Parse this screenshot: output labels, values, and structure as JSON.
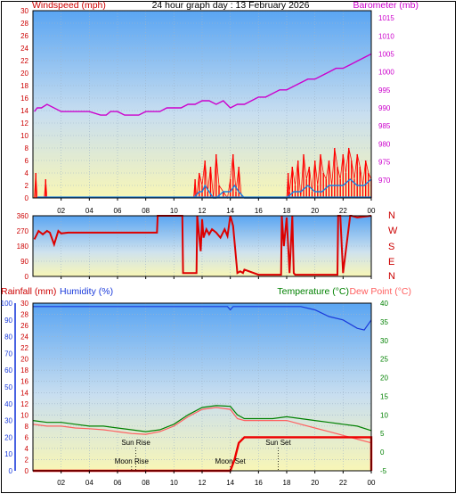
{
  "title": "24 hour graph day : 13 February 2026",
  "chart_data": [
    {
      "type": "line",
      "id": "wind-baro",
      "left_label": "Windspeed (mph)",
      "right_label": "Barometer (mb)",
      "left_ylim": [
        0,
        30
      ],
      "left_ticks": [
        0,
        2,
        4,
        6,
        8,
        10,
        12,
        14,
        16,
        18,
        20,
        22,
        24,
        26,
        28,
        30
      ],
      "right_ylim": [
        965,
        1017
      ],
      "right_ticks": [
        970,
        975,
        980,
        985,
        990,
        995,
        1000,
        1005,
        1010,
        1015
      ],
      "x_ticks": [
        "02",
        "04",
        "06",
        "08",
        "10",
        "12",
        "14",
        "16",
        "18",
        "20",
        "22",
        "00"
      ],
      "x_hours": [
        2,
        4,
        6,
        8,
        10,
        12,
        14,
        16,
        18,
        20,
        22,
        24
      ],
      "grid": true,
      "series": [
        {
          "name": "Barometer (mb)",
          "axis": "right",
          "color": "#cc00cc",
          "x": [
            0.1,
            0.3,
            0.6,
            1.0,
            2.0,
            3.0,
            4.0,
            4.8,
            5.2,
            5.5,
            6.0,
            6.5,
            7.0,
            7.5,
            8.0,
            8.5,
            9.0,
            9.5,
            10.0,
            10.5,
            11.0,
            11.5,
            12.0,
            12.5,
            13.0,
            13.5,
            14.0,
            14.5,
            15.0,
            15.5,
            16.0,
            16.5,
            17.0,
            17.5,
            18.0,
            18.5,
            19.0,
            19.5,
            20.0,
            20.5,
            21.0,
            21.5,
            22.0,
            22.5,
            23.0,
            23.5,
            24.0
          ],
          "y": [
            989,
            990,
            990,
            991,
            989,
            989,
            989,
            988,
            988,
            989,
            989,
            988,
            988,
            988,
            989,
            989,
            989,
            990,
            990,
            990,
            991,
            991,
            992,
            992,
            991,
            992,
            990,
            991,
            991,
            992,
            993,
            993,
            994,
            995,
            995,
            996,
            997,
            998,
            998,
            999,
            1000,
            1001,
            1001,
            1002,
            1003,
            1004,
            1005
          ]
        },
        {
          "name": "Windspeed (mph)",
          "axis": "left",
          "color": "#ff0000",
          "x": [
            0.1,
            0.2,
            0.3,
            0.4,
            0.8,
            0.9,
            1.0,
            11.4,
            11.5,
            11.6,
            11.8,
            12.0,
            12.2,
            12.4,
            12.6,
            12.8,
            13.0,
            13.2,
            13.5,
            13.8,
            14.0,
            14.2,
            14.4,
            14.6,
            14.8,
            15.0,
            18.0,
            18.1,
            18.2,
            18.4,
            18.6,
            18.8,
            19.0,
            19.2,
            19.4,
            19.6,
            19.8,
            20.0,
            20.2,
            20.4,
            20.6,
            20.8,
            21.0,
            21.2,
            21.4,
            21.6,
            21.8,
            22.0,
            22.2,
            22.4,
            22.6,
            22.8,
            23.0,
            23.2,
            23.4,
            23.6,
            23.8,
            24.0
          ],
          "y": [
            0,
            4,
            0,
            0,
            0,
            3,
            0,
            0,
            3,
            0,
            4,
            2,
            6,
            1,
            5,
            0,
            7,
            2,
            1,
            0,
            3,
            7,
            1,
            5,
            0,
            0,
            0,
            4,
            1,
            5,
            2,
            6,
            0,
            7,
            3,
            5,
            1,
            6,
            2,
            7,
            4,
            3,
            6,
            2,
            8,
            5,
            3,
            7,
            4,
            8,
            6,
            3,
            7,
            5,
            2,
            6,
            4,
            3
          ]
        },
        {
          "name": "Gust",
          "axis": "left",
          "color": "#1a7fe0",
          "x": [
            11.4,
            11.8,
            12.0,
            12.2,
            12.5,
            12.8,
            13.0,
            13.5,
            14.0,
            14.3,
            14.6,
            15.0,
            18.0,
            18.5,
            19.0,
            19.5,
            20.0,
            20.5,
            21.0,
            21.5,
            22.0,
            22.5,
            23.0,
            23.5,
            24.0
          ],
          "y": [
            0,
            1,
            1,
            2,
            1,
            0,
            0,
            1,
            1,
            2,
            1,
            0,
            0,
            1,
            1,
            2,
            1,
            1,
            2,
            2,
            2,
            3,
            2,
            2,
            3
          ]
        }
      ]
    },
    {
      "type": "line",
      "id": "wind-direction",
      "left_ylim": [
        0,
        360
      ],
      "left_ticks": [
        0,
        90,
        180,
        270,
        360
      ],
      "right_ticks_text": [
        "N",
        "E",
        "S",
        "W",
        "N"
      ],
      "grid": true,
      "series": [
        {
          "name": "Direction",
          "axis": "left",
          "color": "#dd0000",
          "x": [
            0.1,
            0.4,
            0.7,
            1.0,
            1.2,
            1.5,
            1.8,
            2.0,
            2.5,
            3.0,
            4.0,
            5.0,
            6.0,
            7.0,
            8.0,
            8.8,
            8.85,
            9.5,
            10.0,
            10.6,
            10.65,
            11.0,
            11.6,
            11.65,
            11.9,
            12.0,
            12.1,
            12.3,
            12.5,
            12.7,
            13.0,
            13.3,
            13.6,
            13.8,
            14.0,
            14.2,
            14.5,
            14.7,
            14.9,
            15.0,
            16.0,
            17.0,
            17.6,
            17.65,
            17.8,
            18.0,
            18.2,
            18.4,
            18.5,
            18.6,
            19.0,
            20.0,
            21.0,
            21.6,
            21.65,
            21.8,
            22.0,
            22.5,
            22.6,
            23.0,
            24.0
          ],
          "y": [
            220,
            270,
            250,
            270,
            260,
            190,
            270,
            255,
            260,
            260,
            260,
            260,
            260,
            260,
            260,
            260,
            360,
            360,
            360,
            360,
            20,
            20,
            20,
            360,
            150,
            340,
            230,
            280,
            250,
            280,
            260,
            230,
            280,
            240,
            360,
            300,
            20,
            30,
            20,
            40,
            10,
            10,
            10,
            360,
            180,
            350,
            20,
            360,
            20,
            10,
            10,
            10,
            10,
            10,
            360,
            360,
            20,
            360,
            360,
            350,
            360
          ]
        }
      ]
    },
    {
      "type": "line",
      "id": "temp-humidity",
      "left_label_rain": "Rainfall (mm)",
      "left_label_hum": "Humidity (%)",
      "right_label_temp": "Temperature (°C)",
      "right_label_dew": "Dew Point (°C)",
      "rain_ylim": [
        0,
        30
      ],
      "rain_ticks": [
        0,
        2,
        4,
        6,
        8,
        10,
        12,
        14,
        16,
        18,
        20,
        22,
        24,
        26,
        28,
        30
      ],
      "hum_ylim": [
        0,
        100
      ],
      "hum_ticks": [
        0,
        10,
        20,
        30,
        40,
        50,
        60,
        70,
        80,
        90,
        100
      ],
      "temp_ylim": [
        -5,
        40
      ],
      "temp_ticks": [
        -5,
        0,
        5,
        10,
        15,
        20,
        25,
        30,
        35,
        40
      ],
      "grid": true,
      "annotations": [
        {
          "label": "Sun Rise",
          "hour": 7.3
        },
        {
          "label": "Moon Rise",
          "hour": 7.0
        },
        {
          "label": "Moon Set",
          "hour": 14.0
        },
        {
          "label": "Sun Set",
          "hour": 17.4
        }
      ],
      "series": [
        {
          "name": "Temperature (°C)",
          "axis": "temp",
          "color": "#008000",
          "x": [
            0,
            1,
            2,
            3,
            4,
            5,
            6,
            7,
            8,
            9,
            10,
            11,
            12,
            13,
            14,
            14.5,
            15,
            16,
            17,
            18,
            19,
            20,
            21,
            22,
            23,
            24
          ],
          "y": [
            8.5,
            8.0,
            8.0,
            7.5,
            7.0,
            7.0,
            6.5,
            6.0,
            5.5,
            6.0,
            7.5,
            10.0,
            12.0,
            12.5,
            12.3,
            10.0,
            9.0,
            9.0,
            9.0,
            9.5,
            9.0,
            8.5,
            8.0,
            7.5,
            7.0,
            5.8
          ]
        },
        {
          "name": "Dew Point (°C)",
          "axis": "temp",
          "color": "#ff6060",
          "x": [
            0,
            1,
            2,
            3,
            4,
            5,
            6,
            7,
            8,
            9,
            10,
            11,
            12,
            13,
            14,
            14.5,
            15,
            16,
            17,
            18,
            19,
            20,
            21,
            22,
            23,
            24
          ],
          "y": [
            7.5,
            7.0,
            7.0,
            6.5,
            6.3,
            6.0,
            5.5,
            5.0,
            4.8,
            5.5,
            7.0,
            9.5,
            11.5,
            12.0,
            11.5,
            9.0,
            8.5,
            8.5,
            8.5,
            8.5,
            7.5,
            6.5,
            5.5,
            4.5,
            3.5,
            2.5
          ]
        },
        {
          "name": "Humidity (%)",
          "axis": "hum",
          "color": "#1a3adb",
          "x": [
            0,
            2,
            4,
            6,
            8,
            10,
            12,
            13.8,
            14.0,
            14.2,
            15,
            16,
            18,
            19,
            20,
            21,
            22,
            23,
            23.5,
            24
          ],
          "y": [
            98,
            98,
            98,
            98,
            98,
            98,
            98,
            98,
            96,
            98,
            98,
            98,
            98,
            98,
            96,
            92,
            90,
            85,
            84,
            90
          ]
        },
        {
          "name": "Rainfall (mm)",
          "axis": "rain",
          "color": "#ee0000",
          "x": [
            0,
            14.0,
            14.3,
            14.6,
            15.0,
            16,
            17,
            18,
            19,
            20,
            21,
            22,
            23,
            24,
            24.0
          ],
          "y": [
            0,
            0,
            2,
            5,
            6,
            6,
            6,
            6,
            6,
            6,
            6,
            6,
            6,
            6,
            0
          ]
        }
      ]
    }
  ]
}
